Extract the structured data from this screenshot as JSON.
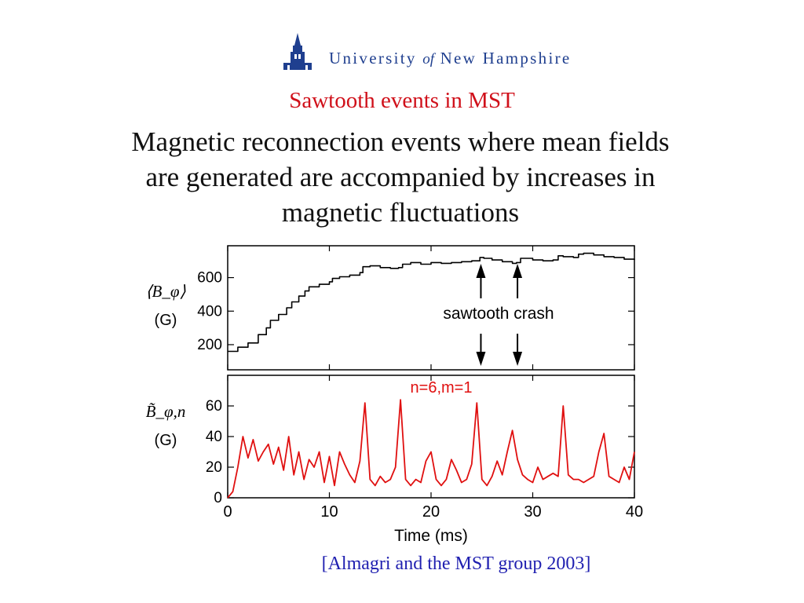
{
  "header": {
    "institution_words": [
      "University",
      "of",
      "New Hampshire"
    ],
    "subtitle": "Sawtooth events in MST",
    "headline": "Magnetic reconnection events where mean fields are generated are accompanied by increases in magnetic fluctuations"
  },
  "citation": "[Almagri and the MST group 2003]",
  "colors": {
    "brand": "#1f3f8f",
    "subtitle": "#d0101a",
    "series_top": "#000000",
    "series_bottom": "#e01010",
    "citation": "#1f1fb0"
  },
  "chart_data": [
    {
      "type": "line",
      "ylabel": "⟨B_φ⟩",
      "ylabel_unit": "(G)",
      "ylim": [
        50,
        790
      ],
      "yticks": [
        200,
        400,
        600
      ],
      "xlim": [
        0,
        40
      ],
      "annotation": "sawtooth crash",
      "arrows_at_x": [
        24.9,
        28.5
      ],
      "series": [
        {
          "x": [
            0,
            1,
            2,
            3,
            3.8,
            4.2,
            5,
            5.8,
            6.3,
            7,
            7.6,
            8,
            9,
            10,
            10.3,
            11,
            12,
            13,
            13.3,
            14,
            15,
            16,
            16.8,
            17.2,
            18,
            19,
            20,
            21,
            22,
            23,
            24,
            24.8,
            25.2,
            26,
            27,
            28,
            28.4,
            28.8,
            30,
            31,
            32,
            32.5,
            33,
            34,
            34.5,
            35,
            36,
            37,
            38,
            39,
            40
          ],
          "y": [
            160,
            185,
            210,
            260,
            300,
            345,
            380,
            420,
            455,
            490,
            520,
            545,
            560,
            575,
            595,
            605,
            615,
            630,
            665,
            670,
            660,
            655,
            660,
            680,
            690,
            680,
            690,
            685,
            690,
            695,
            700,
            720,
            715,
            705,
            695,
            685,
            690,
            715,
            705,
            700,
            705,
            730,
            725,
            720,
            740,
            745,
            735,
            725,
            720,
            710,
            705
          ]
        }
      ]
    },
    {
      "type": "line",
      "ylabel": "B̃_φ,n",
      "ylabel_unit": "(G)",
      "ylim": [
        0,
        80
      ],
      "yticks": [
        0,
        20,
        40,
        60
      ],
      "xlim": [
        0,
        40
      ],
      "xticks": [
        0,
        10,
        20,
        30,
        40
      ],
      "xlabel": "Time (ms)",
      "legend": "n=6,m=1",
      "series": [
        {
          "x": [
            0,
            0.5,
            1,
            1.5,
            2,
            2.5,
            3,
            3.5,
            4,
            4.5,
            5,
            5.5,
            6,
            6.5,
            7,
            7.5,
            8,
            8.5,
            9,
            9.5,
            10,
            10.5,
            11,
            11.5,
            12,
            12.5,
            13,
            13.5,
            14,
            14.5,
            15,
            15.5,
            16,
            16.5,
            17,
            17.5,
            18,
            18.5,
            19,
            19.5,
            20,
            20.5,
            21,
            21.5,
            22,
            22.5,
            23,
            23.5,
            24,
            24.5,
            25,
            25.5,
            26,
            26.5,
            27,
            27.5,
            28,
            28.5,
            29,
            29.5,
            30,
            30.5,
            31,
            31.5,
            32,
            32.5,
            33,
            33.5,
            34,
            34.5,
            35,
            35.5,
            36,
            36.5,
            37,
            37.5,
            38,
            38.5,
            39,
            39.5,
            40
          ],
          "y": [
            0,
            4,
            20,
            40,
            26,
            38,
            24,
            30,
            35,
            22,
            33,
            18,
            40,
            15,
            30,
            12,
            25,
            20,
            30,
            10,
            27,
            8,
            30,
            22,
            15,
            10,
            24,
            62,
            12,
            8,
            14,
            10,
            12,
            20,
            64,
            12,
            8,
            12,
            10,
            24,
            30,
            12,
            8,
            12,
            25,
            18,
            10,
            12,
            22,
            62,
            12,
            8,
            14,
            24,
            15,
            30,
            44,
            25,
            15,
            12,
            10,
            20,
            12,
            14,
            16,
            14,
            60,
            15,
            12,
            12,
            10,
            12,
            14,
            30,
            42,
            14,
            12,
            10,
            20,
            12,
            30
          ]
        }
      ]
    }
  ]
}
